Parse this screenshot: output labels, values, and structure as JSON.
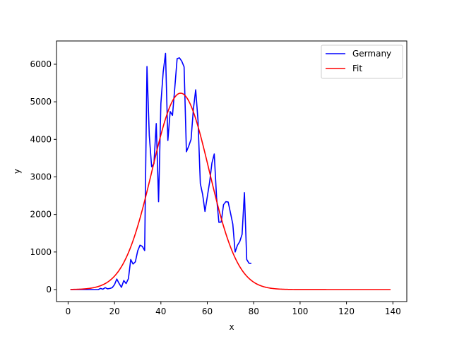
{
  "chart_data": {
    "type": "line",
    "title": "",
    "xlabel": "x",
    "ylabel": "y",
    "xlim": [
      -5,
      146
    ],
    "ylim": [
      -320,
      6620
    ],
    "x_ticks": [
      0,
      20,
      40,
      60,
      80,
      100,
      120,
      140
    ],
    "y_ticks": [
      0,
      1000,
      2000,
      3000,
      4000,
      5000,
      6000
    ],
    "grid": false,
    "legend_position": "top-right",
    "series": [
      {
        "name": "Germany",
        "color": "#0000ff",
        "points": [
          [
            1,
            0
          ],
          [
            5,
            0
          ],
          [
            10,
            0
          ],
          [
            13,
            0
          ],
          [
            14,
            30
          ],
          [
            15,
            10
          ],
          [
            16,
            50
          ],
          [
            17,
            20
          ],
          [
            18,
            30
          ],
          [
            19,
            50
          ],
          [
            20,
            130
          ],
          [
            21,
            280
          ],
          [
            22,
            160
          ],
          [
            23,
            60
          ],
          [
            24,
            240
          ],
          [
            25,
            160
          ],
          [
            26,
            290
          ],
          [
            27,
            800
          ],
          [
            28,
            680
          ],
          [
            29,
            740
          ],
          [
            30,
            1030
          ],
          [
            31,
            1180
          ],
          [
            32,
            1150
          ],
          [
            33,
            1040
          ],
          [
            34,
            5940
          ],
          [
            35,
            4100
          ],
          [
            36,
            3270
          ],
          [
            37,
            3350
          ],
          [
            38,
            4420
          ],
          [
            39,
            2340
          ],
          [
            40,
            4960
          ],
          [
            41,
            5800
          ],
          [
            42,
            6290
          ],
          [
            43,
            3970
          ],
          [
            44,
            4740
          ],
          [
            45,
            4640
          ],
          [
            46,
            5380
          ],
          [
            47,
            6150
          ],
          [
            48,
            6170
          ],
          [
            49,
            6080
          ],
          [
            50,
            5930
          ],
          [
            51,
            3670
          ],
          [
            52,
            3820
          ],
          [
            53,
            4000
          ],
          [
            54,
            4800
          ],
          [
            55,
            5320
          ],
          [
            56,
            4500
          ],
          [
            57,
            2820
          ],
          [
            58,
            2530
          ],
          [
            59,
            2080
          ],
          [
            60,
            2470
          ],
          [
            61,
            2860
          ],
          [
            62,
            3370
          ],
          [
            63,
            3610
          ],
          [
            64,
            2450
          ],
          [
            65,
            1790
          ],
          [
            66,
            1800
          ],
          [
            67,
            2260
          ],
          [
            68,
            2340
          ],
          [
            69,
            2330
          ],
          [
            70,
            2040
          ],
          [
            71,
            1740
          ],
          [
            72,
            1000
          ],
          [
            73,
            1180
          ],
          [
            74,
            1280
          ],
          [
            75,
            1470
          ],
          [
            76,
            2580
          ],
          [
            77,
            800
          ],
          [
            78,
            700
          ],
          [
            79,
            700
          ]
        ]
      },
      {
        "name": "Fit",
        "color": "#ff0000",
        "function": "gaussian",
        "amplitude": 5230,
        "mean": 48.5,
        "sigma": 12.3,
        "x_range": [
          1,
          139
        ]
      }
    ]
  }
}
